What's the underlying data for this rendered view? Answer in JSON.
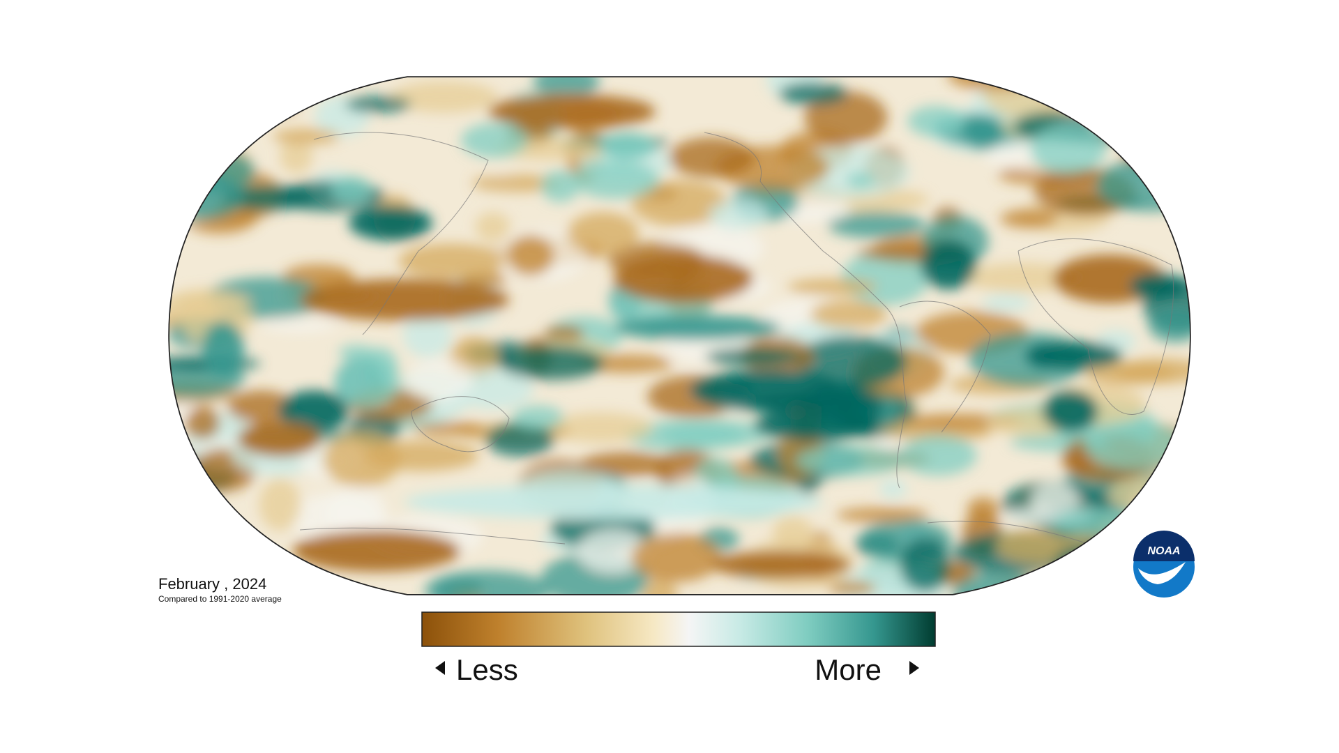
{
  "map": {
    "date": "February , 2024",
    "baseline": "Compared to 1991-2020 average",
    "legend": {
      "low": "Less",
      "high": "More"
    },
    "logo": "NOAA"
  }
}
